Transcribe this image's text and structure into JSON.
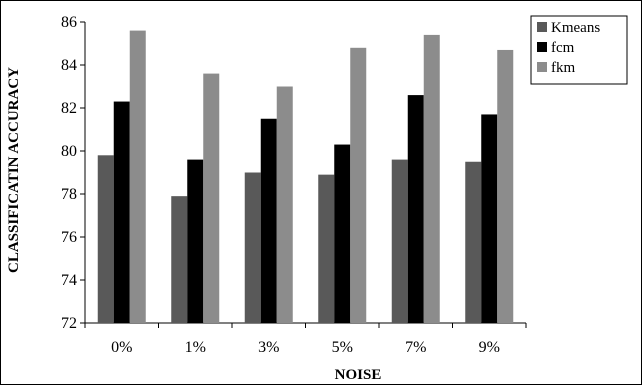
{
  "chart_data": {
    "type": "bar",
    "title": "",
    "xlabel": "NOISE",
    "ylabel": "CLASSIFICATIN ACCURACY",
    "categories": [
      "0%",
      "1%",
      "3%",
      "5%",
      "7%",
      "9%"
    ],
    "series": [
      {
        "name": "Kmeans",
        "color": "#595959",
        "values": [
          79.8,
          77.9,
          79.0,
          78.9,
          79.6,
          79.5
        ]
      },
      {
        "name": "fcm",
        "color": "#000000",
        "values": [
          82.3,
          79.6,
          81.5,
          80.3,
          82.6,
          81.7
        ]
      },
      {
        "name": "fkm",
        "color": "#8c8c8c",
        "values": [
          85.6,
          83.6,
          83.0,
          84.8,
          85.4,
          84.7
        ]
      }
    ],
    "ylim": [
      72,
      86
    ],
    "yticks": [
      72,
      74,
      76,
      78,
      80,
      82,
      84,
      86
    ],
    "grid": false,
    "legend_position": "top-right"
  }
}
